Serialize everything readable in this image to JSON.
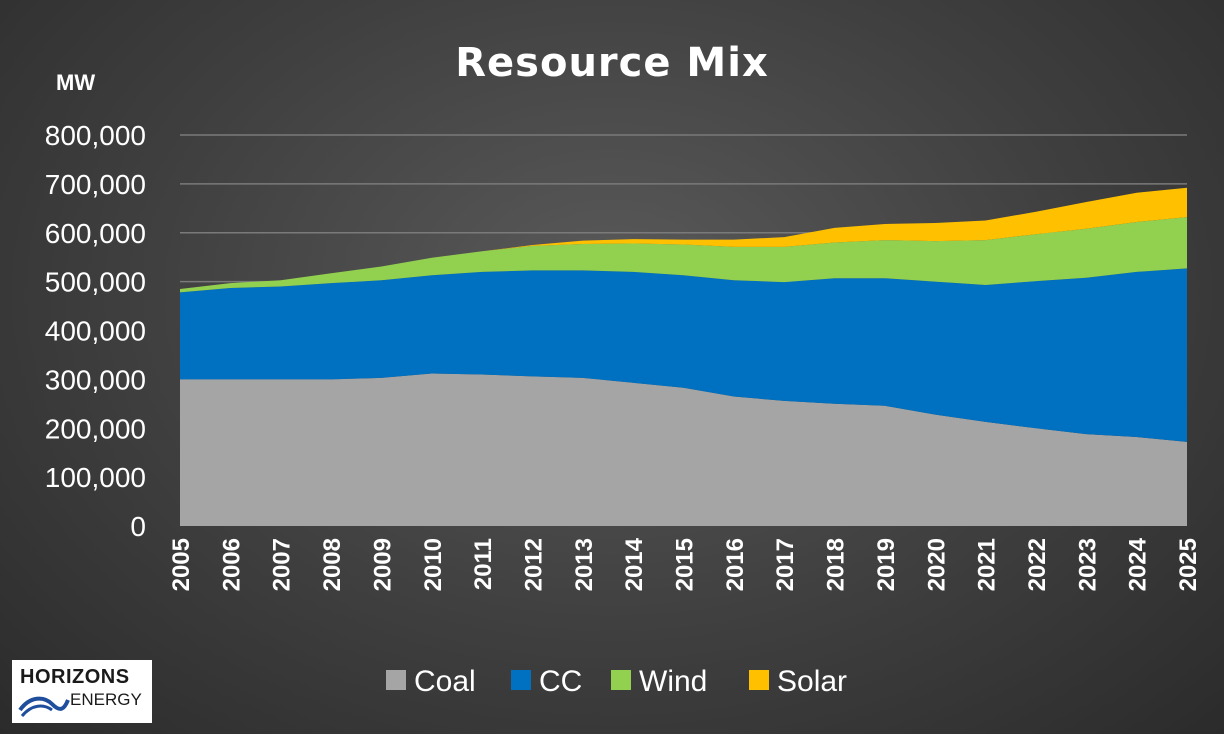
{
  "chart_data": {
    "type": "area",
    "stacked": true,
    "title": "Resource Mix",
    "unit_label": "MW",
    "x": [
      "2005",
      "2006",
      "2007",
      "2008",
      "2009",
      "2010",
      "2011",
      "2012",
      "2013",
      "2014",
      "2015",
      "2016",
      "2017",
      "2018",
      "2019",
      "2020",
      "2021",
      "2022",
      "2023",
      "2024",
      "2025"
    ],
    "ylim": [
      0,
      800000
    ],
    "yticks": [
      0,
      100000,
      200000,
      300000,
      400000,
      500000,
      600000,
      700000,
      800000
    ],
    "ytick_labels": [
      "0",
      "100,000",
      "200,000",
      "300,000",
      "400,000",
      "500,000",
      "600,000",
      "700,000",
      "800,000"
    ],
    "grid": true,
    "legend_position": "bottom",
    "series": [
      {
        "name": "Coal",
        "color": "#a5a5a5",
        "values": [
          300000,
          300000,
          300000,
          300000,
          303000,
          312000,
          310000,
          306000,
          303000,
          293000,
          283000,
          265000,
          256000,
          250000,
          246000,
          228000,
          213000,
          200000,
          188000,
          182000,
          172000
        ]
      },
      {
        "name": "CC",
        "color": "#0070c0",
        "values": [
          178000,
          187000,
          190000,
          197000,
          200000,
          201000,
          210000,
          217000,
          220000,
          227000,
          230000,
          238000,
          243000,
          257000,
          261000,
          272000,
          280000,
          301000,
          320000,
          338000,
          355000
        ]
      },
      {
        "name": "Wind",
        "color": "#92d050",
        "values": [
          7000,
          10000,
          13000,
          20000,
          28000,
          36000,
          42000,
          50000,
          54000,
          58000,
          63000,
          68000,
          72000,
          73000,
          78000,
          83000,
          92000,
          96000,
          100000,
          102000,
          105000
        ]
      },
      {
        "name": "Solar",
        "color": "#ffc000",
        "values": [
          0,
          0,
          0,
          0,
          0,
          0,
          0,
          2000,
          7000,
          9000,
          10000,
          15000,
          20000,
          30000,
          33000,
          37000,
          40000,
          46000,
          55000,
          60000,
          60000
        ]
      }
    ]
  },
  "logo": {
    "line1": "HORIZONS",
    "line2": "ENERGY",
    "text": "HORIZONS ENERGY"
  }
}
